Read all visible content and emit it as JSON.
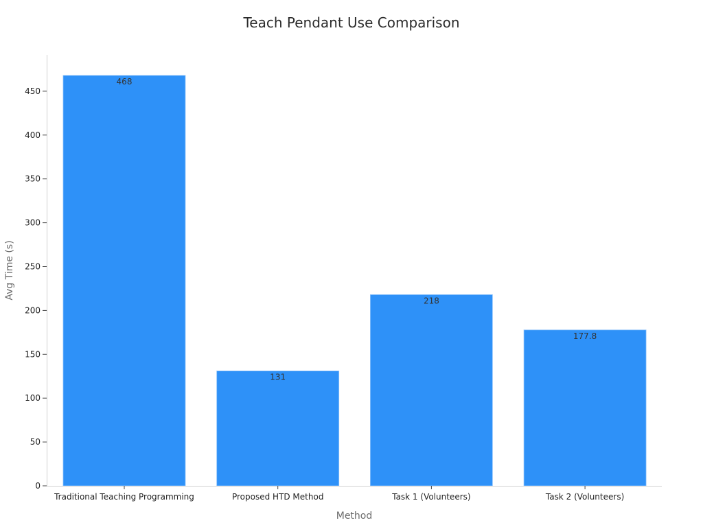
{
  "chart_data": {
    "type": "bar",
    "title": "Teach Pendant Use Comparison",
    "xlabel": "Method",
    "ylabel": "Avg Time (s)",
    "categories": [
      "Traditional Teaching Programming",
      "Proposed HTD Method",
      "Task 1 (Volunteers)",
      "Task 2 (Volunteers)"
    ],
    "values": [
      468,
      131,
      218,
      177.8
    ],
    "value_labels": [
      "468",
      "131",
      "218",
      "177.8"
    ],
    "yticks": [
      0,
      50,
      100,
      150,
      200,
      250,
      300,
      350,
      400,
      450
    ],
    "ylim": [
      0,
      491.4
    ],
    "grid": false,
    "legend": "none",
    "bar_color": "#2e91f8"
  }
}
